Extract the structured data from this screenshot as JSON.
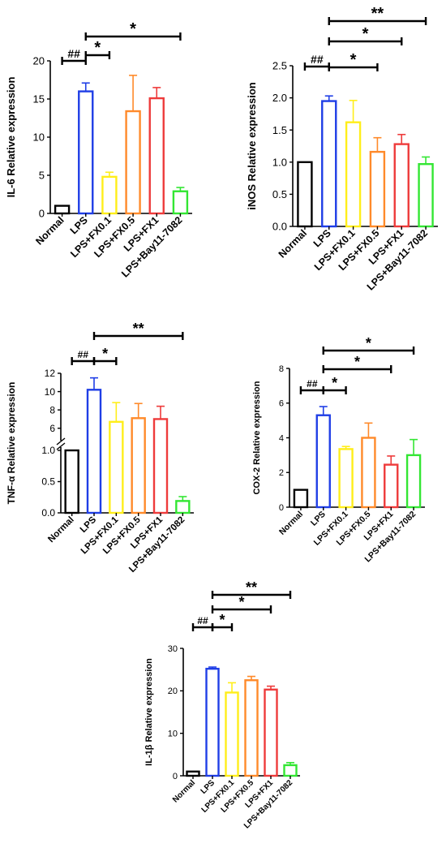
{
  "categories": [
    "Normal",
    "LPS",
    "LPS+FX0.1",
    "LPS+FX0.5",
    "LPS+FX1",
    "LPS+Bay11-7082"
  ],
  "colors": [
    "#000000",
    "#1f3ee6",
    "#ffee1a",
    "#ff8a2a",
    "#ee3b3b",
    "#33e633"
  ],
  "chart_data": [
    {
      "type": "bar",
      "ylabel": "IL-6 Relative expression",
      "ylim": [
        0,
        20
      ],
      "yticks": [
        0,
        5,
        10,
        15,
        20
      ],
      "values": [
        1.0,
        16.0,
        4.8,
        13.4,
        15.1,
        2.9
      ],
      "errors": [
        0.0,
        1.1,
        0.6,
        4.7,
        1.4,
        0.5
      ],
      "significance": [
        {
          "from": "Normal",
          "to": "LPS",
          "label": "##"
        },
        {
          "from": "LPS",
          "to": "LPS+FX0.1",
          "label": "*"
        },
        {
          "from": "LPS",
          "to": "LPS+Bay11-7082",
          "label": "*"
        }
      ]
    },
    {
      "type": "bar",
      "ylabel": "iNOS Relative expression",
      "ylim": [
        0,
        2.5
      ],
      "yticks": [
        "0.0",
        "0.5",
        "1.0",
        "1.5",
        "2.0",
        "2.5"
      ],
      "values": [
        1.0,
        1.95,
        1.62,
        1.16,
        1.28,
        0.97
      ],
      "errors": [
        0.0,
        0.08,
        0.34,
        0.22,
        0.15,
        0.11
      ],
      "significance": [
        {
          "from": "Normal",
          "to": "LPS",
          "label": "##"
        },
        {
          "from": "LPS",
          "to": "LPS+FX0.5",
          "label": "*"
        },
        {
          "from": "LPS",
          "to": "LPS+FX1",
          "label": "*"
        },
        {
          "from": "LPS",
          "to": "LPS+Bay11-7082",
          "label": "**"
        }
      ]
    },
    {
      "type": "bar",
      "ylabel": "TNF-α Relative expression",
      "axis_break": true,
      "lower_ylim": [
        0,
        1.0
      ],
      "lower_yticks": [
        "0.0",
        "0.5",
        "1.0"
      ],
      "upper_ylim": [
        5,
        12
      ],
      "upper_yticks": [
        6,
        8,
        10,
        12
      ],
      "values": [
        1.0,
        10.2,
        6.7,
        7.1,
        7.0,
        0.19
      ],
      "errors": [
        0.0,
        1.3,
        2.1,
        1.6,
        1.4,
        0.07
      ],
      "significance": [
        {
          "from": "Normal",
          "to": "LPS",
          "label": "##"
        },
        {
          "from": "LPS",
          "to": "LPS+FX0.1",
          "label": "*"
        },
        {
          "from": "LPS",
          "to": "LPS+Bay11-7082",
          "label": "**"
        }
      ]
    },
    {
      "type": "bar",
      "ylabel": "COX-2 Relative expression",
      "ylim": [
        0,
        8
      ],
      "yticks": [
        0,
        2,
        4,
        6,
        8
      ],
      "values": [
        1.0,
        5.3,
        3.35,
        4.0,
        2.45,
        3.0
      ],
      "errors": [
        0.0,
        0.5,
        0.15,
        0.85,
        0.5,
        0.9
      ],
      "significance": [
        {
          "from": "Normal",
          "to": "LPS",
          "label": "##"
        },
        {
          "from": "LPS",
          "to": "LPS+FX0.1",
          "label": "*"
        },
        {
          "from": "LPS",
          "to": "LPS+FX1",
          "label": "*"
        },
        {
          "from": "LPS",
          "to": "LPS+Bay11-7082",
          "label": "*"
        }
      ]
    },
    {
      "type": "bar",
      "ylabel": "IL-1β Relative expression",
      "ylim": [
        0,
        30
      ],
      "yticks": [
        0,
        10,
        20,
        30
      ],
      "values": [
        1.0,
        25.2,
        19.6,
        22.5,
        20.3,
        2.5
      ],
      "errors": [
        0.0,
        0.4,
        2.3,
        0.9,
        0.8,
        0.6
      ],
      "significance": [
        {
          "from": "Normal",
          "to": "LPS",
          "label": "##"
        },
        {
          "from": "LPS",
          "to": "LPS+FX0.1",
          "label": "*"
        },
        {
          "from": "LPS",
          "to": "LPS+FX1",
          "label": "*"
        },
        {
          "from": "LPS",
          "to": "LPS+Bay11-7082",
          "label": "**"
        }
      ]
    }
  ]
}
